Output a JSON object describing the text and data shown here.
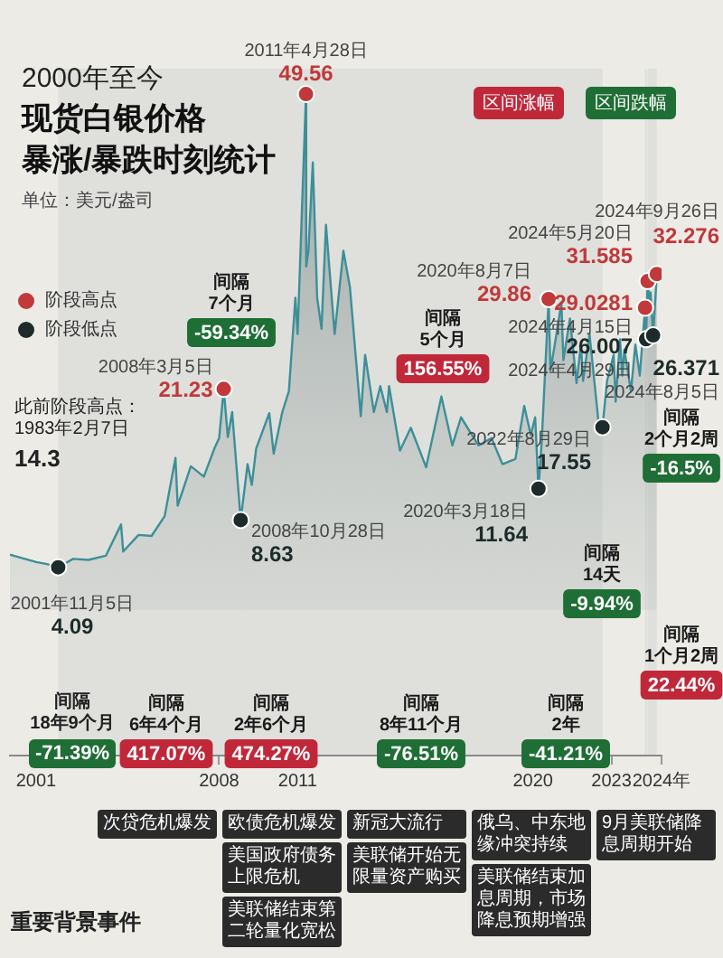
{
  "chart_data": {
    "type": "area",
    "subtitle": "2000年至今",
    "title": "现货白银价格暴涨/暴跌时刻统计",
    "ylabel": "单位：美元/盎司",
    "xlim": [
      "2000-01",
      "2024-12"
    ],
    "xticks": [
      {
        "value": "2001",
        "label": "2001"
      },
      {
        "value": "2008",
        "label": "2008"
      },
      {
        "value": "2011",
        "label": "2011"
      },
      {
        "value": "2020",
        "label": "2020"
      },
      {
        "value": "2023",
        "label": "2023"
      },
      {
        "value": "2024-12",
        "label": "2024年"
      }
    ],
    "ylim": [
      -14,
      52
    ],
    "tick_labels": "x",
    "grid": false,
    "legend": "left",
    "series": [
      {
        "color": "#3d8f98",
        "x": [
          "2000-01",
          "2000-06",
          "2001-01",
          "2001-06",
          "2001-11-05",
          "2002-06",
          "2003-01",
          "2003-09",
          "2004-04",
          "2004-05",
          "2004-12",
          "2005-06",
          "2005-12",
          "2006-05",
          "2006-06",
          "2006-12",
          "2007-06",
          "2007-11",
          "2008-01",
          "2008-03-05",
          "2008-05",
          "2008-07",
          "2008-10-28",
          "2009-02",
          "2009-04",
          "2009-06",
          "2009-12",
          "2010-02",
          "2010-06",
          "2010-09",
          "2010-12",
          "2011-01",
          "2011-04-28",
          "2011-05",
          "2011-06",
          "2011-08",
          "2011-10",
          "2011-12",
          "2012-02",
          "2012-06",
          "2012-10",
          "2013-01",
          "2013-06",
          "2013-08",
          "2013-12",
          "2014-03",
          "2014-06",
          "2014-07",
          "2014-12",
          "2015-05",
          "2015-12",
          "2016-07",
          "2016-12",
          "2017-04",
          "2017-12",
          "2018-06",
          "2018-11",
          "2019-05",
          "2019-09",
          "2019-12",
          "2020-02",
          "2020-03-18",
          "2020-05",
          "2020-08-07",
          "2020-09",
          "2020-11",
          "2021-02",
          "2021-03",
          "2021-06",
          "2021-09",
          "2021-11",
          "2021-12",
          "2022-03",
          "2022-07",
          "2022-08-29",
          "2022-11",
          "2023-02",
          "2023-03",
          "2023-05",
          "2023-06",
          "2023-07",
          "2023-10",
          "2023-12",
          "2024-02",
          "2024-04-15",
          "2024-04-29",
          "2024-05-20",
          "2024-06",
          "2024-07",
          "2024-08-05",
          "2024-09-26"
        ],
        "values": [
          5.3,
          5.0,
          4.6,
          4.4,
          4.09,
          4.9,
          4.8,
          5.2,
          8.2,
          5.6,
          7.2,
          7.1,
          9.0,
          14.6,
          10.0,
          13.8,
          12.8,
          15.6,
          16.5,
          21.23,
          16.6,
          19.0,
          8.63,
          14.0,
          12.0,
          15.5,
          18.9,
          15.0,
          19.0,
          21.0,
          30.0,
          26.5,
          49.56,
          33.0,
          34.5,
          43.0,
          30.0,
          27.0,
          37.0,
          26.5,
          34.5,
          31.0,
          18.6,
          24.5,
          19.0,
          21.5,
          19.0,
          21.5,
          15.3,
          17.5,
          13.7,
          20.5,
          15.8,
          18.5,
          15.8,
          16.5,
          14.0,
          14.5,
          19.6,
          16.8,
          18.5,
          11.64,
          16.0,
          29.86,
          23.0,
          25.5,
          29.5,
          24.0,
          28.0,
          21.8,
          25.5,
          22.0,
          26.5,
          18.3,
          17.55,
          22.0,
          24.5,
          20.0,
          26.0,
          22.5,
          25.0,
          21.0,
          25.5,
          22.5,
          29.0281,
          26.007,
          31.585,
          29.0,
          30.5,
          26.371,
          32.276
        ]
      },
      {
        "type": "scatter",
        "name": "阶段高点",
        "color": "#c0393b",
        "marker": "circle",
        "x": [
          "2008-03-05",
          "2011-04-28",
          "2020-08-07",
          "2024-04-15",
          "2024-05-20",
          "2024-09-26"
        ],
        "values": [
          21.23,
          49.56,
          29.86,
          29.0281,
          31.585,
          32.276
        ],
        "value_labels": [
          "21.23",
          "49.56",
          "29.86",
          "29.0281",
          "31.585",
          "32.276"
        ]
      },
      {
        "type": "scatter",
        "name": "阶段低点",
        "color": "#1d2b2a",
        "marker": "circle",
        "x": [
          "2001-11-05",
          "2008-10-28",
          "2020-03-18",
          "2022-08-29",
          "2024-04-29",
          "2024-08-05"
        ],
        "values": [
          4.09,
          8.63,
          11.64,
          17.55,
          26.007,
          26.371
        ],
        "value_labels": [
          "4.09",
          "8.63",
          "11.64",
          "17.55",
          "26.007",
          "26.371"
        ]
      }
    ],
    "bands": [
      {
        "axis": "x",
        "from": "2001-11-05",
        "to": "2008-03-05",
        "label": "间隔\n6年4个月\n417.07%"
      },
      {
        "axis": "x",
        "from": "2008-03-05",
        "to": "2008-10-28",
        "label": "间隔\n7个月\n-59.34%"
      },
      {
        "axis": "x",
        "from": "2008-10-28",
        "to": "2011-04-28",
        "label": "间隔\n2年6个月\n474.27%"
      },
      {
        "axis": "x",
        "from": "2011-04-28",
        "to": "2020-03-18",
        "label": "间隔\n8年11个月\n-76.51%"
      },
      {
        "axis": "x",
        "from": "2020-03-18",
        "to": "2020-08-07",
        "label": "间隔\n5个月\n156.55%"
      },
      {
        "axis": "x",
        "from": "2020-08-07",
        "to": "2022-08-29",
        "label": "间隔\n2年\n-41.21%"
      },
      {
        "axis": "x",
        "from": "2024-04-15",
        "to": "2024-04-29",
        "label": "间隔\n14天\n-9.94%"
      },
      {
        "axis": "x",
        "from": "2024-05-20",
        "to": "2024-08-05",
        "label": "间隔\n2个月2周\n-16.5%"
      },
      {
        "axis": "x",
        "from": "2024-08-05",
        "to": "2024-09-26",
        "label": "间隔\n1个月2周\n22.44%"
      }
    ],
    "annotations": [
      "此前阶段高点：\n1983年2月7日\n14.3",
      "区间涨幅",
      "区间跌幅",
      "间隔\n18年9个月\n-71.39%",
      "重要背景事件",
      {
        "text": "2008年3月5日",
        "x": "2008-03-05",
        "y": 21.23
      },
      {
        "text": "2011年4月28日",
        "x": "2011-04-28",
        "y": 49.56
      },
      {
        "text": "2020年8月7日",
        "x": "2020-08-07",
        "y": 29.86
      },
      {
        "text": "2024年4月15日",
        "x": "2024-04-15",
        "y": 29.0281
      },
      {
        "text": "2024年5月20日",
        "x": "2024-05-20",
        "y": 31.585
      },
      {
        "text": "2024年9月26日",
        "x": "2024-09-26",
        "y": 32.276
      },
      {
        "text": "2001年11月5日",
        "x": "2001-11-05",
        "y": 4.09
      },
      {
        "text": "2008年10月28日",
        "x": "2008-10-28",
        "y": 8.63
      },
      {
        "text": "2020年3月18日",
        "x": "2020-03-18",
        "y": 11.64
      },
      {
        "text": "2022年8月29日",
        "x": "2022-08-29",
        "y": 17.55
      },
      {
        "text": "2024年4月29日",
        "x": "2024-04-29",
        "y": 26.007
      },
      {
        "text": "2024年8月5日",
        "x": "2024-08-05",
        "y": 26.371
      },
      "次贷危机爆发",
      "欧债危机爆发",
      "美国政府债务上限危机",
      "美联储结束第二轮量化宽松",
      "新冠大流行",
      "美联储开始无限量资产购买",
      "俄乌、中东地缘冲突持续",
      "美联储结束加息周期，市场降息预期增强",
      "9月美联储降息周期开始"
    ]
  }
}
